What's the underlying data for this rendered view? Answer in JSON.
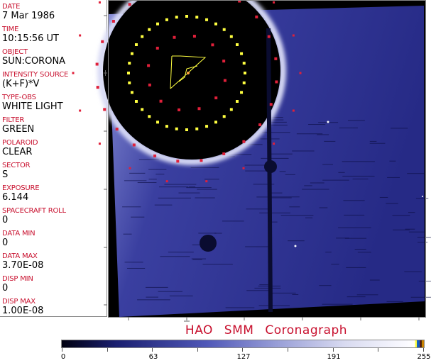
{
  "fields": [
    {
      "label": "DATE",
      "value": "7 Mar 1986"
    },
    {
      "label": "TIME",
      "value": "10:15:56 UT"
    },
    {
      "label": "OBJECT",
      "value": "SUN:CORONA"
    },
    {
      "label": "INTENSITY SOURCE",
      "value": "(K+F)*V"
    },
    {
      "label": "TYPE-OBS",
      "value": "WHITE LIGHT"
    },
    {
      "label": "FILTER",
      "value": "GREEN"
    },
    {
      "label": "POLAROID",
      "value": "CLEAR"
    },
    {
      "label": "SECTOR",
      "value": "S"
    },
    {
      "label": "EXPOSURE",
      "value": "6.144"
    },
    {
      "label": "SPACECRAFT ROLL",
      "value": "0"
    },
    {
      "label": "DATA MIN",
      "value": "0"
    },
    {
      "label": "DATA MAX",
      "value": "3.70E-08"
    },
    {
      "label": "DISP MIN",
      "value": "0"
    },
    {
      "label": "DISP MAX",
      "value": "1.00E-08"
    }
  ],
  "title": "HAO SMM Coronagraph",
  "colorbar": {
    "ticks": [
      "0",
      "63",
      "127",
      "191",
      "255"
    ],
    "colors": [
      "#000010",
      "#5058b8",
      "#ffffff"
    ]
  },
  "colors": {
    "label": "#c8102e",
    "grid_yellow": "#ffff40",
    "grid_red": "#e0203a"
  }
}
